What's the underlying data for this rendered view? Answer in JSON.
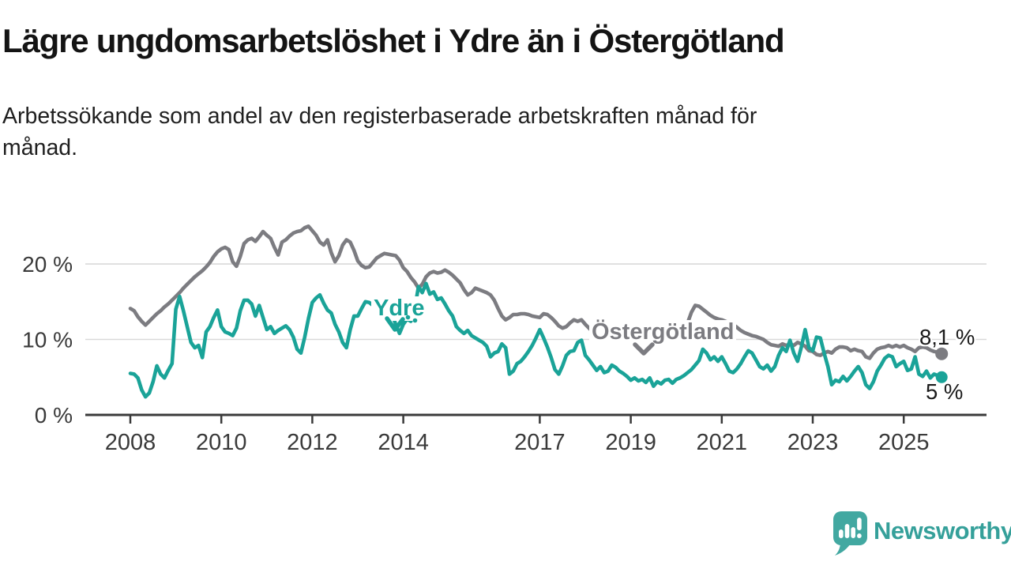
{
  "header": {
    "title": "Lägre ungdomsarbetslöshet i Ydre än i Östergötland",
    "subtitle": "Arbetssökande som andel av den registerbaserade arbetskraften månad för\nmånad."
  },
  "chart_data": {
    "type": "line",
    "title": "Lägre ungdomsarbetslöshet i Ydre än i Östergötland",
    "xlabel": "",
    "ylabel": "",
    "x_unit": "month",
    "x_start": "2008-01",
    "x_end": "2025-11",
    "x_tick_years": [
      2008,
      2010,
      2012,
      2014,
      2017,
      2019,
      2021,
      2023,
      2025
    ],
    "y_ticks": [
      {
        "value": 0,
        "label": "0 %"
      },
      {
        "value": 10,
        "label": "10 %"
      },
      {
        "value": 20,
        "label": "20 %"
      }
    ],
    "ylim": [
      0,
      27
    ],
    "grid": "horizontal",
    "legend_position": "inline-annotations",
    "series": [
      {
        "name": "Ydre",
        "color": "#1aa398",
        "end_label": "5 %",
        "final_value": 5.0,
        "values": [
          5.5,
          5.4,
          4.9,
          3.3,
          2.4,
          2.9,
          4.4,
          6.5,
          5.4,
          4.9,
          5.9,
          6.8,
          14.0,
          15.7,
          13.8,
          11.7,
          9.6,
          8.9,
          9.2,
          7.6,
          11.0,
          11.7,
          12.9,
          13.9,
          11.7,
          11.0,
          10.8,
          10.5,
          11.5,
          13.8,
          15.2,
          15.2,
          14.7,
          13.1,
          14.5,
          12.9,
          11.3,
          11.7,
          10.8,
          11.2,
          11.5,
          11.8,
          11.3,
          10.3,
          8.7,
          8.2,
          10.3,
          12.8,
          14.9,
          15.5,
          15.9,
          14.8,
          13.9,
          13.5,
          12.0,
          11.0,
          9.6,
          8.9,
          11.3,
          13.1,
          13.1,
          14.1,
          15.0,
          14.9,
          14.5,
          14.7,
          14.1,
          13.8,
          13.9,
          13.4,
          12.0,
          10.8,
          12.0,
          12.7,
          12.4,
          14.0,
          17.0,
          16.2,
          17.4,
          16.0,
          16.3,
          15.3,
          15.5,
          14.7,
          13.8,
          13.1,
          11.7,
          11.2,
          10.8,
          11.2,
          10.5,
          10.2,
          9.9,
          9.6,
          9.1,
          7.7,
          8.2,
          8.4,
          9.4,
          8.9,
          5.4,
          5.8,
          6.8,
          7.1,
          7.7,
          8.4,
          9.2,
          10.2,
          11.3,
          10.2,
          9.0,
          7.6,
          6.0,
          5.4,
          6.5,
          7.9,
          8.4,
          8.5,
          9.6,
          9.9,
          7.9,
          7.3,
          6.6,
          5.9,
          6.4,
          5.6,
          5.8,
          6.6,
          6.3,
          5.8,
          5.5,
          5.1,
          4.6,
          4.9,
          4.5,
          4.7,
          4.3,
          4.9,
          3.8,
          4.4,
          4.1,
          4.6,
          4.7,
          4.2,
          4.7,
          4.9,
          5.2,
          5.6,
          6.0,
          6.6,
          7.2,
          8.7,
          8.2,
          7.3,
          7.7,
          7.1,
          7.7,
          6.8,
          5.8,
          5.6,
          6.1,
          6.8,
          7.7,
          8.5,
          8.2,
          7.3,
          6.4,
          6.1,
          6.6,
          5.8,
          6.4,
          7.9,
          8.9,
          8.4,
          9.9,
          8.2,
          7.1,
          9.0,
          11.3,
          8.9,
          8.5,
          10.3,
          10.2,
          8.2,
          6.4,
          4.0,
          4.6,
          4.4,
          5.1,
          4.5,
          5.1,
          5.8,
          6.4,
          5.6,
          4.0,
          3.5,
          4.4,
          5.8,
          6.6,
          7.5,
          7.9,
          7.7,
          6.4,
          6.8,
          7.1,
          5.9,
          6.1,
          7.7,
          5.4,
          5.1,
          5.8,
          4.9,
          5.4,
          5.2,
          5.0
        ]
      },
      {
        "name": "Östergötland",
        "color": "#7c7c81",
        "end_label": "8,1 %",
        "final_value": 8.1,
        "values": [
          14.1,
          13.8,
          13.0,
          12.4,
          11.9,
          12.4,
          12.9,
          13.4,
          13.8,
          14.3,
          14.7,
          15.2,
          15.7,
          16.2,
          16.8,
          17.3,
          17.8,
          18.3,
          18.7,
          19.1,
          19.6,
          20.2,
          21.0,
          21.6,
          22.0,
          22.2,
          21.9,
          20.3,
          19.7,
          21.0,
          22.7,
          23.2,
          23.4,
          23.0,
          23.6,
          24.3,
          23.8,
          23.4,
          22.2,
          21.2,
          22.9,
          23.2,
          23.7,
          24.1,
          24.3,
          24.4,
          24.8,
          25.0,
          24.4,
          23.8,
          22.9,
          22.5,
          23.2,
          21.5,
          20.3,
          21.1,
          22.5,
          23.2,
          22.9,
          21.8,
          20.4,
          19.8,
          19.5,
          19.6,
          20.2,
          20.8,
          21.1,
          21.4,
          21.3,
          21.2,
          21.1,
          20.5,
          19.5,
          19.0,
          18.2,
          17.6,
          16.8,
          17.3,
          18.3,
          18.8,
          19.0,
          18.8,
          18.9,
          19.2,
          18.9,
          18.5,
          18.0,
          17.5,
          16.6,
          15.9,
          16.2,
          16.8,
          16.6,
          16.4,
          16.2,
          15.9,
          15.2,
          14.1,
          13.1,
          12.6,
          12.9,
          13.3,
          13.3,
          13.4,
          13.4,
          13.3,
          13.1,
          13.0,
          12.9,
          13.4,
          13.3,
          12.9,
          12.4,
          11.8,
          11.5,
          11.7,
          12.2,
          12.6,
          12.4,
          12.6,
          12.0,
          11.5,
          11.0,
          10.8,
          10.6,
          10.5,
          10.4,
          10.3,
          10.2,
          10.1,
          10.0,
          10.0,
          10.0,
          9.9,
          9.8,
          9.8,
          9.7,
          9.8,
          9.9,
          9.8,
          9.9,
          10.0,
          10.1,
          10.1,
          10.2,
          10.3,
          10.8,
          12.2,
          13.6,
          14.5,
          14.4,
          14.0,
          13.6,
          13.2,
          12.9,
          12.7,
          12.6,
          12.4,
          12.2,
          12.0,
          11.6,
          11.2,
          10.9,
          10.7,
          10.5,
          10.4,
          10.2,
          10.0,
          9.6,
          9.3,
          9.2,
          9.1,
          9.4,
          9.2,
          9.4,
          9.2,
          9.6,
          9.4,
          9.1,
          8.5,
          8.4,
          8.0,
          7.9,
          8.2,
          8.4,
          8.2,
          8.7,
          9.0,
          9.0,
          8.9,
          8.5,
          8.7,
          8.5,
          8.4,
          7.7,
          7.5,
          8.2,
          8.7,
          8.9,
          9.0,
          9.2,
          9.0,
          9.2,
          9.0,
          9.2,
          8.9,
          8.7,
          8.4,
          8.9,
          9.0,
          8.9,
          8.6,
          8.4,
          8.3,
          8.1
        ]
      }
    ]
  },
  "footer": {
    "brand": "Newsworthy",
    "brand_color": "#35a09a",
    "brand_bubble_color": "#42a8a1"
  }
}
